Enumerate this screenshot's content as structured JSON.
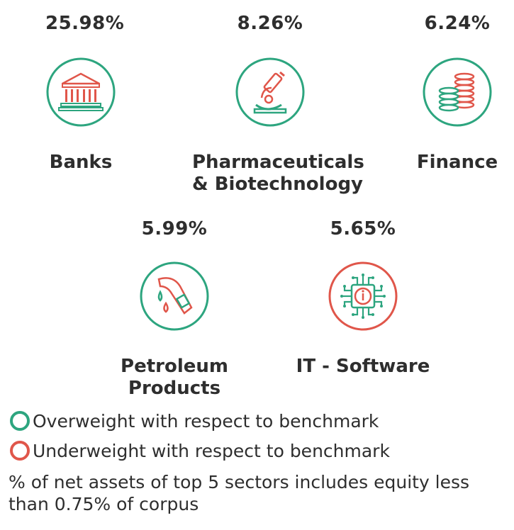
{
  "colors": {
    "overweight": "#2da57f",
    "underweight": "#e0564a"
  },
  "sectors": [
    {
      "pct": "25.98%",
      "name_lines": [
        "Banks"
      ],
      "icon": "bank-icon",
      "weight": "overweight"
    },
    {
      "pct": "8.26%",
      "name_lines": [
        "Pharmaceuticals",
        "& Biotechnology"
      ],
      "icon": "microscope-icon",
      "weight": "overweight"
    },
    {
      "pct": "6.24%",
      "name_lines": [
        "Finance"
      ],
      "icon": "coins-icon",
      "weight": "overweight"
    },
    {
      "pct": "5.99%",
      "name_lines": [
        "Petroleum",
        "Products"
      ],
      "icon": "fuel-nozzle-icon",
      "weight": "overweight"
    },
    {
      "pct": "5.65%",
      "name_lines": [
        "IT - Software"
      ],
      "icon": "chip-icon",
      "weight": "underweight"
    }
  ],
  "legend": {
    "overweight": "Overweight with respect to benchmark",
    "underweight": "Underweight with respect to benchmark"
  },
  "note": "% of net assets of top 5 sectors includes equity less than 0.75% of corpus"
}
